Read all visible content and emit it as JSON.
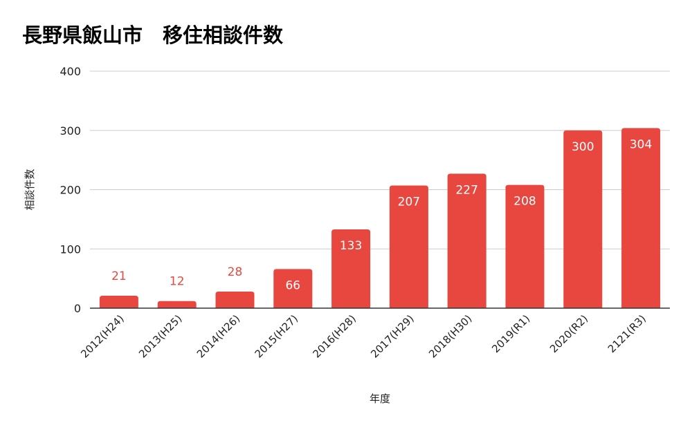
{
  "chart_data": {
    "type": "bar",
    "title": "長野県飯山市　移住相談件数",
    "xlabel": "年度",
    "ylabel": "相談件数",
    "categories": [
      "2012(H24)",
      "2013(H25)",
      "2014(H26)",
      "2015(H27)",
      "2016(H28)",
      "2017(H29)",
      "2018(H30)",
      "2019(R1)",
      "2020(R2)",
      "2121(R3)"
    ],
    "series": [
      {
        "values": [
          21,
          12,
          28,
          66,
          133,
          207,
          227,
          208,
          300,
          304
        ]
      }
    ],
    "ylim": [
      0,
      400
    ],
    "yticks": [
      0,
      100,
      200,
      300,
      400
    ],
    "grid": true,
    "legend": "none",
    "colors": {
      "bar": "#e8473f",
      "label_inside": "#ffffff",
      "label_outside": "#e8473f",
      "grid": "#cccccc",
      "axis": "#333333"
    }
  }
}
